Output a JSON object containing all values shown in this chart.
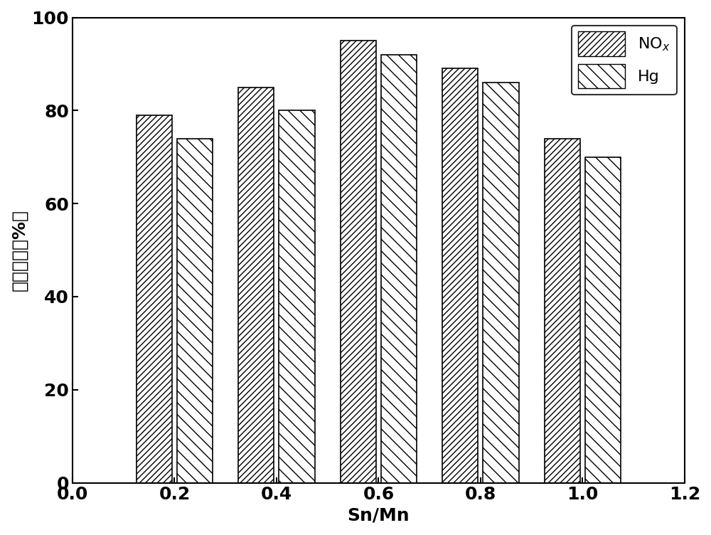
{
  "categories": [
    0.2,
    0.4,
    0.6,
    0.8,
    1.0
  ],
  "NOx_values": [
    79,
    85,
    95,
    89,
    74
  ],
  "Hg_values": [
    74,
    80,
    92,
    86,
    70
  ],
  "bar_width": 0.07,
  "bar_gap": 0.01,
  "xlim": [
    0.0,
    1.2
  ],
  "ylim": [
    0,
    100
  ],
  "yticks": [
    0,
    20,
    40,
    60,
    80,
    100
  ],
  "xticks": [
    0.0,
    0.2,
    0.4,
    0.6,
    0.8,
    1.0,
    1.2
  ],
  "xlabel": "Sn/Mn",
  "ylabel": "脱除效率（%）",
  "legend_labels": [
    "NO$_x$",
    "Hg"
  ],
  "hatch_NOx": "////",
  "hatch_Hg": "\\\\",
  "facecolor": "white",
  "edgecolor": "black",
  "xlabel_fontsize": 18,
  "ylabel_fontsize": 18,
  "tick_fontsize": 18,
  "legend_fontsize": 16
}
